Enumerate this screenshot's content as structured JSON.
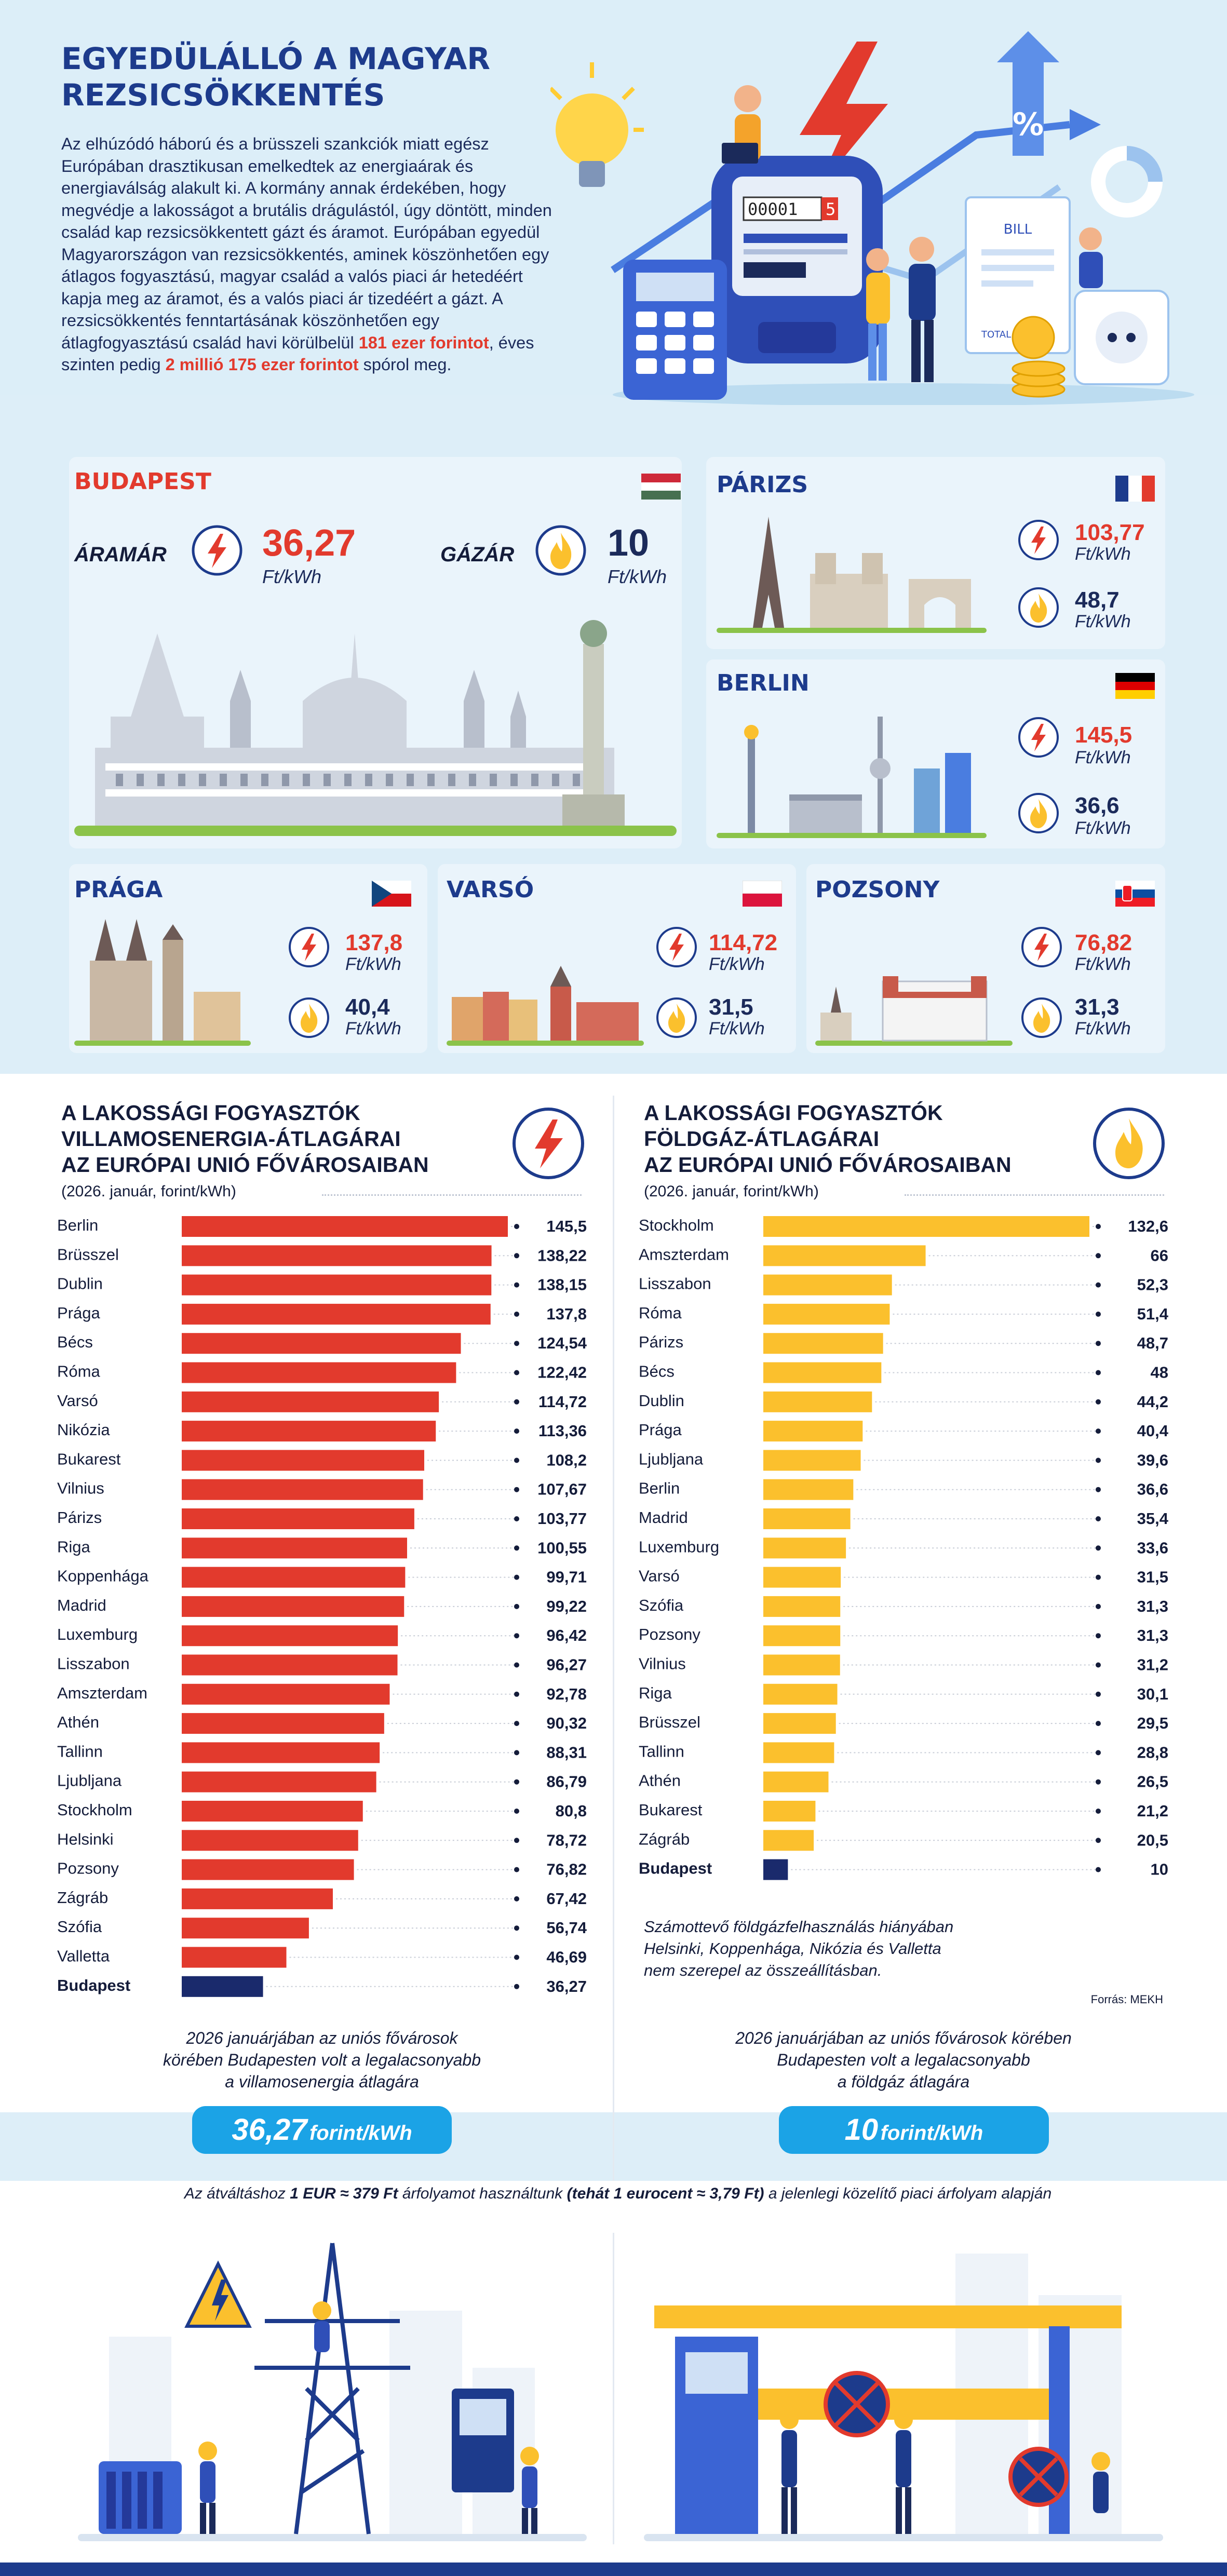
{
  "header": {
    "title_line1": "EGYEDÜLÁLLÓ A MAGYAR",
    "title_line2": "REZSICSÖKKENTÉS",
    "intro_text": "Az elhúzódó háború és a brüsszeli szankciók miatt egész Európában drasztikusan emelkedtek az energiaárak és energiaválság alakult ki. A kormány annak érdekében, hogy megvédje a lakosságot a brutális drágulástól, úgy döntött, minden család kap rezsicsökkentett gázt és áramot. Európában egyedül Magyarországon van rezsicsökkentés, aminek köszönhetően egy átlagos fogyasztású, magyar család a valós piaci ár hetedéért kapja meg az áramot, és a valós piaci ár tizedéért a gázt. A rezsicsökkentés fenntartásának köszönhetően egy átlagfogyasztású család havi körülbelül ",
    "intro_highlight1": "181 ezer forintot",
    "intro_mid": ", éves szinten pedig ",
    "intro_highlight2": "2 millió 175 ezer forintot",
    "intro_end": " spórol meg.",
    "meter_digits": "00001",
    "meter_last_digit": "5",
    "bill_label": "BILL",
    "total_label": "TOTAL",
    "percent_symbol": "%"
  },
  "cities": {
    "budapest": {
      "name": "BUDAPEST",
      "power_label": "ÁRAMÁR",
      "power_value": "36,27",
      "gas_label": "GÁZÁR",
      "gas_value": "10",
      "unit": "Ft/kWh"
    },
    "paris": {
      "name": "PÁRIZS",
      "power_value": "103,77",
      "gas_value": "48,7",
      "unit": "Ft/kWh"
    },
    "berlin": {
      "name": "BERLIN",
      "power_value": "145,5",
      "gas_value": "36,6",
      "unit": "Ft/kWh"
    },
    "prague": {
      "name": "PRÁGA",
      "power_value": "137,8",
      "gas_value": "40,4",
      "unit": "Ft/kWh"
    },
    "warsaw": {
      "name": "VARSÓ",
      "power_value": "114,72",
      "gas_value": "31,5",
      "unit": "Ft/kWh"
    },
    "bratislava": {
      "name": "POZSONY",
      "power_value": "76,82",
      "gas_value": "31,3",
      "unit": "Ft/kWh"
    }
  },
  "colors": {
    "red": "#e23a2d",
    "gas": "#fbc02d",
    "navy": "#1a2a6c",
    "accent": "#1ba3e6"
  },
  "chart_data": [
    {
      "type": "bar",
      "orientation": "horizontal",
      "title_lines": [
        "A LAKOSSÁGI FOGYASZTÓK",
        "VILLAMOSENERGIA-ÁTLAGÁRAI",
        "AZ EURÓPAI UNIÓ FŐVÁROSAIBAN"
      ],
      "subtitle": "(2026. január, forint/kWh)",
      "categories": [
        "Berlin",
        "Brüsszel",
        "Dublin",
        "Prága",
        "Bécs",
        "Róma",
        "Varsó",
        "Nikózia",
        "Bukarest",
        "Vilnius",
        "Párizs",
        "Riga",
        "Koppenhága",
        "Madrid",
        "Luxemburg",
        "Lisszabon",
        "Amszterdam",
        "Athén",
        "Tallinn",
        "Ljubljana",
        "Stockholm",
        "Helsinki",
        "Pozsony",
        "Zágráb",
        "Szófia",
        "Valletta",
        "Budapest"
      ],
      "values": [
        145.5,
        138.22,
        138.15,
        137.8,
        124.54,
        122.42,
        114.72,
        113.36,
        108.2,
        107.67,
        103.77,
        100.55,
        99.71,
        99.22,
        96.42,
        96.27,
        92.78,
        90.32,
        88.31,
        86.79,
        80.8,
        78.72,
        76.82,
        67.42,
        56.74,
        46.69,
        36.27
      ],
      "value_labels": [
        "145,5",
        "138,22",
        "138,15",
        "137,8",
        "124,54",
        "122,42",
        "114,72",
        "113,36",
        "108,2",
        "107,67",
        "103,77",
        "100,55",
        "99,71",
        "99,22",
        "96,42",
        "96,27",
        "92,78",
        "90,32",
        "88,31",
        "86,79",
        "80,8",
        "78,72",
        "76,82",
        "67,42",
        "56,74",
        "46,69",
        "36,27"
      ],
      "highlight": "Budapest",
      "xlim": [
        0,
        145.5
      ],
      "summary_line1": "2026 januárjában az uniós fővárosok",
      "summary_line2": "körében Budapesten volt a legalacsonyabb",
      "summary_line3": "a villamosenergia átlagára",
      "pill_value": "36,27",
      "pill_unit": "forint/kWh"
    },
    {
      "type": "bar",
      "orientation": "horizontal",
      "title_lines": [
        "A LAKOSSÁGI FOGYASZTÓK",
        "FÖLDGÁZ-ÁTLAGÁRAI",
        "AZ EURÓPAI UNIÓ FŐVÁROSAIBAN"
      ],
      "subtitle": "(2026. január, forint/kWh)",
      "categories": [
        "Stockholm",
        "Amszterdam",
        "Lisszabon",
        "Róma",
        "Párizs",
        "Bécs",
        "Dublin",
        "Prága",
        "Ljubljana",
        "Berlin",
        "Madrid",
        "Luxemburg",
        "Varsó",
        "Szófia",
        "Pozsony",
        "Vilnius",
        "Riga",
        "Brüsszel",
        "Tallinn",
        "Athén",
        "Bukarest",
        "Zágráb",
        "Budapest"
      ],
      "values": [
        132.6,
        66,
        52.3,
        51.4,
        48.7,
        48,
        44.2,
        40.4,
        39.6,
        36.6,
        35.4,
        33.6,
        31.5,
        31.3,
        31.3,
        31.2,
        30.1,
        29.5,
        28.8,
        26.5,
        21.2,
        20.5,
        10
      ],
      "value_labels": [
        "132,6",
        "66",
        "52,3",
        "51,4",
        "48,7",
        "48",
        "44,2",
        "40,4",
        "39,6",
        "36,6",
        "35,4",
        "33,6",
        "31,5",
        "31,3",
        "31,3",
        "31,2",
        "30,1",
        "29,5",
        "28,8",
        "26,5",
        "21,2",
        "20,5",
        "10"
      ],
      "highlight": "Budapest",
      "xlim": [
        0,
        132.6
      ],
      "note_line1": "Számottevő földgázfelhasználás hiányában",
      "note_line2": "Helsinki, Koppenhága, Nikózia és Valletta",
      "note_line3": "nem szerepel az összeállításban.",
      "source": "Forrás: MEKH",
      "summary_line1": "2026 januárjában az uniós fővárosok körében",
      "summary_line2": "Budapesten volt a legalacsonyabb",
      "summary_line3": "a földgáz átlagára",
      "pill_value": "10",
      "pill_unit": "forint/kWh"
    }
  ],
  "footer": {
    "exchange_pre": "Az átváltáshoz ",
    "exchange_bold1": "1 EUR ≈ 379 Ft",
    "exchange_mid": " árfolyamot használtunk ",
    "exchange_bold2": "(tehát 1 eurocent ≈ 3,79 Ft)",
    "exchange_post": " a jelenlegi közelítő piaci árfolyam alapján"
  }
}
